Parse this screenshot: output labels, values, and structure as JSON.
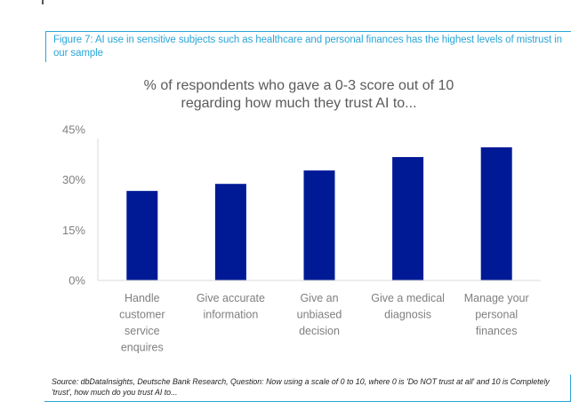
{
  "figure": {
    "heading": "Figure 7: AI use in sensitive subjects such as healthcare and personal finances has the highest levels of mistrust in our sample",
    "source": "Source: dbDataInsights, Deutsche Bank Research, Question: Now using a scale of 0 to 10, where 0 is 'Do NOT trust at all' and 10 is Completely 'trust', how much do you trust AI to..."
  },
  "colors": {
    "bar": "#001a96",
    "heading": "#2aa5d8",
    "axis_text": "#7f7f7f",
    "axis_line": "#d9d9d9"
  },
  "chart_data": {
    "type": "bar",
    "title": "% of respondents who gave a 0-3 score out of 10 regarding how much they trust AI to...",
    "title_lines": [
      "% of respondents who gave a 0-3 score out of 10",
      "regarding how much they trust AI to..."
    ],
    "xlabel": "",
    "ylabel": "",
    "ylim": [
      0,
      45
    ],
    "yticks": [
      0,
      15,
      30,
      45
    ],
    "ytick_labels": [
      "0%",
      "15%",
      "30%",
      "45%"
    ],
    "grid": false,
    "legend": "none",
    "categories": [
      "Handle customer service enquires",
      "Give accurate information",
      "Give an unbiased decision",
      "Give a medical diagnosis",
      "Manage your personal finances"
    ],
    "category_lines": [
      [
        "Handle",
        "customer",
        "service",
        "enquires"
      ],
      [
        "Give accurate",
        "information"
      ],
      [
        "Give an",
        "unbiased",
        "decision"
      ],
      [
        "Give a medical",
        "diagnosis"
      ],
      [
        "Manage your",
        "personal",
        "finances"
      ]
    ],
    "values": [
      26.7,
      28.8,
      32.8,
      36.8,
      39.7
    ],
    "unit": "%"
  }
}
